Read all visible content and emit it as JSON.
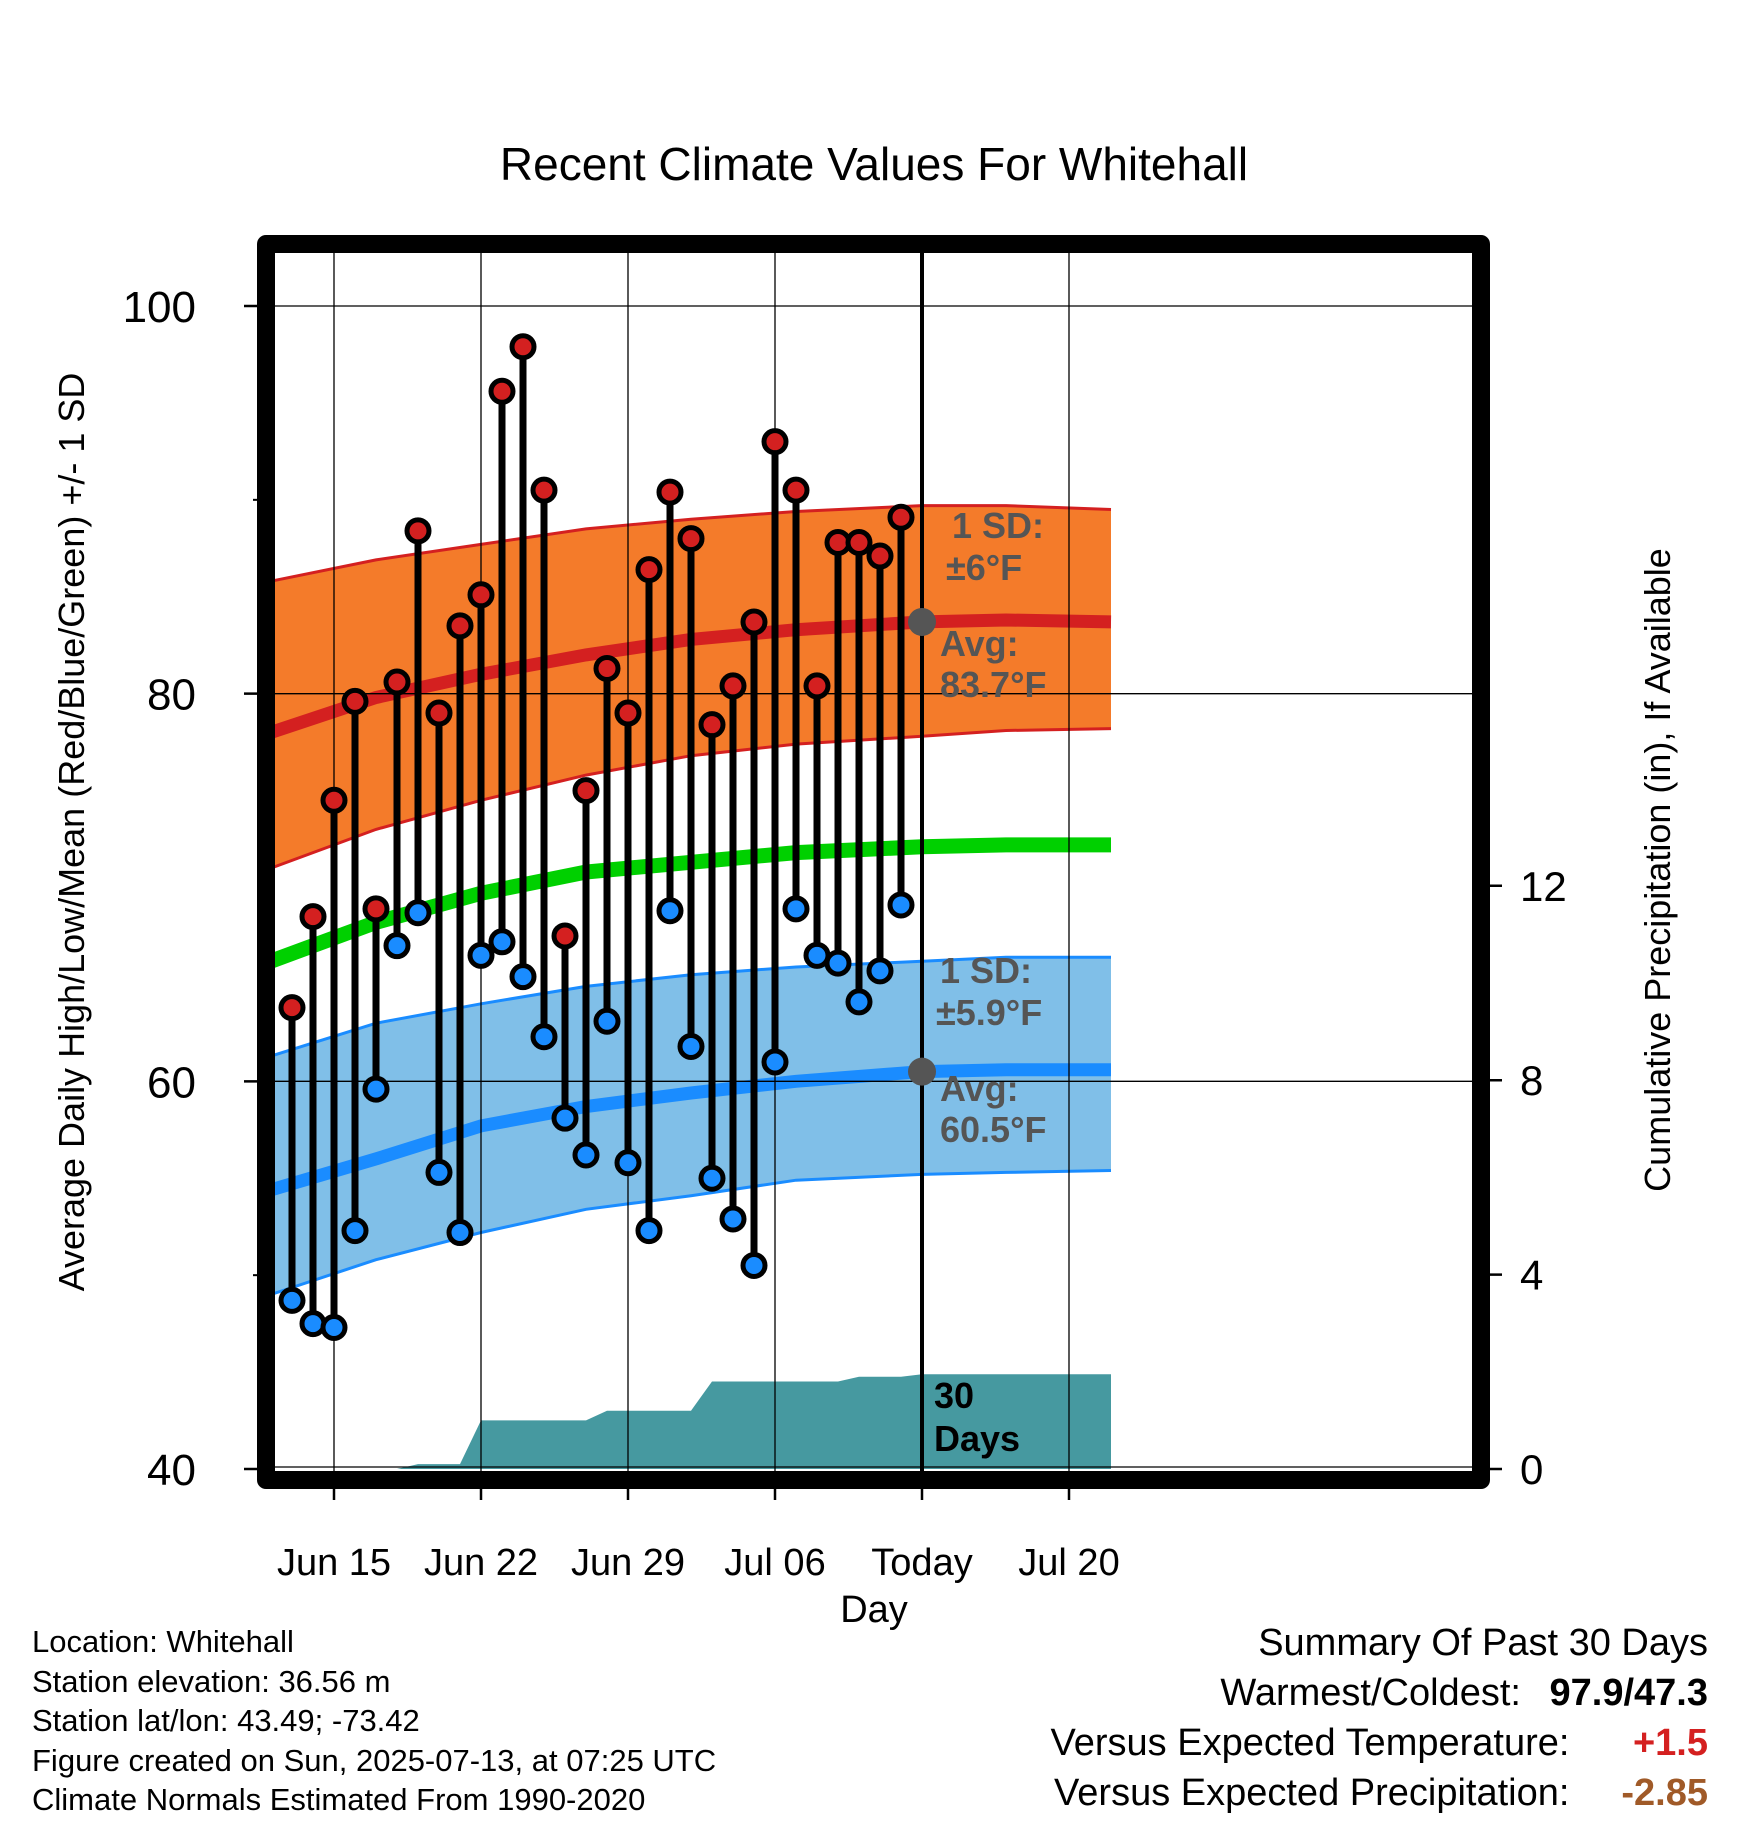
{
  "chart_data": {
    "type": "line",
    "title": "Recent Climate Values For Whitehall",
    "xlabel": "Day",
    "ylabel": "Average Daily High/Low/Mean (Red/Blue/Green) +/- 1 SD",
    "y2label": "Cumulative Precipitation (in), If Available",
    "ylim": [
      40,
      100
    ],
    "y_ticks": [
      40,
      60,
      80,
      100
    ],
    "y2lim": [
      0,
      12
    ],
    "y2_ticks": [
      0,
      4,
      8,
      12
    ],
    "x_start": "Jun 12",
    "x_end": "Jul 22",
    "x_ticks": [
      {
        "date": "Jun 15",
        "label": "Jun 15"
      },
      {
        "date": "Jun 22",
        "label": "Jun 22"
      },
      {
        "date": "Jun 29",
        "label": "Jun 29"
      },
      {
        "date": "Jul 06",
        "label": "Jul 06"
      },
      {
        "date": "Jul 13",
        "label": "Today"
      },
      {
        "date": "Jul 20",
        "label": "Jul 20"
      }
    ],
    "today": "Jul 13",
    "grid": true,
    "colors": {
      "high": "#d42020",
      "low": "#1a8cff",
      "mean": "#00d000",
      "high_band": "#f47b2a",
      "low_band": "#80bfe8",
      "precip": "#4699a0",
      "annotation": "#555555"
    },
    "daily": [
      {
        "date": "Jun 13",
        "high": 63.8,
        "low": 48.7
      },
      {
        "date": "Jun 14",
        "high": 68.5,
        "low": 47.5
      },
      {
        "date": "Jun 15",
        "high": 74.5,
        "low": 47.3
      },
      {
        "date": "Jun 16",
        "high": 79.6,
        "low": 52.3
      },
      {
        "date": "Jun 17",
        "high": 68.9,
        "low": 59.6
      },
      {
        "date": "Jun 18",
        "high": 80.6,
        "low": 67.0
      },
      {
        "date": "Jun 19",
        "high": 88.4,
        "low": 68.7
      },
      {
        "date": "Jun 20",
        "high": 79.0,
        "low": 55.3
      },
      {
        "date": "Jun 21",
        "high": 83.5,
        "low": 52.2
      },
      {
        "date": "Jun 22",
        "high": 85.1,
        "low": 66.5
      },
      {
        "date": "Jun 23",
        "high": 95.6,
        "low": 67.2
      },
      {
        "date": "Jun 24",
        "high": 97.9,
        "low": 65.4
      },
      {
        "date": "Jun 25",
        "high": 90.5,
        "low": 62.3
      },
      {
        "date": "Jun 26",
        "high": 67.5,
        "low": 58.1
      },
      {
        "date": "Jun 27",
        "high": 75.0,
        "low": 56.2
      },
      {
        "date": "Jun 28",
        "high": 81.3,
        "low": 63.1
      },
      {
        "date": "Jun 29",
        "high": 79.0,
        "low": 55.8
      },
      {
        "date": "Jun 30",
        "high": 86.4,
        "low": 52.3
      },
      {
        "date": "Jul 01",
        "high": 90.4,
        "low": 68.8
      },
      {
        "date": "Jul 02",
        "high": 88.0,
        "low": 61.8
      },
      {
        "date": "Jul 03",
        "high": 78.4,
        "low": 55.0
      },
      {
        "date": "Jul 04",
        "high": 80.4,
        "low": 52.9
      },
      {
        "date": "Jul 05",
        "high": 83.7,
        "low": 50.5
      },
      {
        "date": "Jul 06",
        "high": 93.0,
        "low": 61.0
      },
      {
        "date": "Jul 07",
        "high": 90.5,
        "low": 68.9
      },
      {
        "date": "Jul 08",
        "high": 80.4,
        "low": 66.5
      },
      {
        "date": "Jul 09",
        "high": 87.8,
        "low": 66.1
      },
      {
        "date": "Jul 10",
        "high": 87.8,
        "low": 64.1
      },
      {
        "date": "Jul 11",
        "high": 87.1,
        "low": 65.7
      },
      {
        "date": "Jul 12",
        "high": 89.1,
        "low": 69.1
      }
    ],
    "normals": {
      "dates": [
        "Jun 12",
        "Jun 17",
        "Jun 22",
        "Jun 27",
        "Jul 02",
        "Jul 07",
        "Jul 13",
        "Jul 17",
        "Jul 22"
      ],
      "high_avg": [
        78.0,
        79.8,
        81.0,
        82.0,
        82.8,
        83.3,
        83.7,
        83.8,
        83.7
      ],
      "high_sd_upper": [
        85.8,
        86.9,
        87.7,
        88.5,
        89.0,
        89.4,
        89.7,
        89.7,
        89.5
      ],
      "high_sd_lower": [
        71.0,
        73.0,
        74.5,
        75.8,
        76.8,
        77.4,
        77.8,
        78.1,
        78.2
      ],
      "mean_avg": [
        66.2,
        68.2,
        69.7,
        70.8,
        71.3,
        71.8,
        72.1,
        72.2,
        72.2
      ],
      "low_avg": [
        54.4,
        56.0,
        57.7,
        58.7,
        59.4,
        60.0,
        60.5,
        60.6,
        60.6
      ],
      "low_sd_upper": [
        61.3,
        63.0,
        64.0,
        64.9,
        65.5,
        65.9,
        66.2,
        66.4,
        66.4
      ],
      "low_sd_lower": [
        49.0,
        50.8,
        52.2,
        53.4,
        54.1,
        54.9,
        55.2,
        55.3,
        55.4
      ]
    },
    "precip_cumulative": {
      "dates": [
        "Jun 12",
        "Jun 18",
        "Jun 19",
        "Jun 21",
        "Jun 22",
        "Jun 27",
        "Jun 28",
        "Jul 02",
        "Jul 03",
        "Jul 09",
        "Jul 10",
        "Jul 12",
        "Jul 13",
        "Jul 22"
      ],
      "values": [
        0.0,
        0.0,
        0.1,
        0.1,
        1.0,
        1.0,
        1.2,
        1.2,
        1.8,
        1.8,
        1.9,
        1.9,
        1.95,
        1.95
      ]
    },
    "annotations": {
      "high_sd": "1 SD:",
      "high_sd_value": "±6°F",
      "high_avg_label": "Avg:",
      "high_avg_value": "83.7°F",
      "low_sd": "1 SD:",
      "low_sd_value": "±5.9°F",
      "low_avg_label": "Avg:",
      "low_avg_value": "60.5°F",
      "precip_days": "30",
      "precip_days_label": "Days"
    }
  },
  "info": {
    "location": "Location: Whitehall",
    "elevation": "Station elevation: 36.56 m",
    "latlon": "Station lat/lon: 43.49; -73.42",
    "created": "Figure created on Sun, 2025-07-13, at 07:25 UTC",
    "normals": "Climate Normals Estimated From 1990-2020"
  },
  "summary": {
    "title": "Summary Of Past 30 Days",
    "warmest_label": "Warmest/Coldest:",
    "warmest_value": "97.9/47.3",
    "temp_label": "Versus Expected Temperature:",
    "temp_value": "+1.5",
    "temp_color": "#d42020",
    "precip_label": "Versus Expected Precipitation:",
    "precip_value": "-2.85",
    "precip_color": "#a05a28"
  }
}
